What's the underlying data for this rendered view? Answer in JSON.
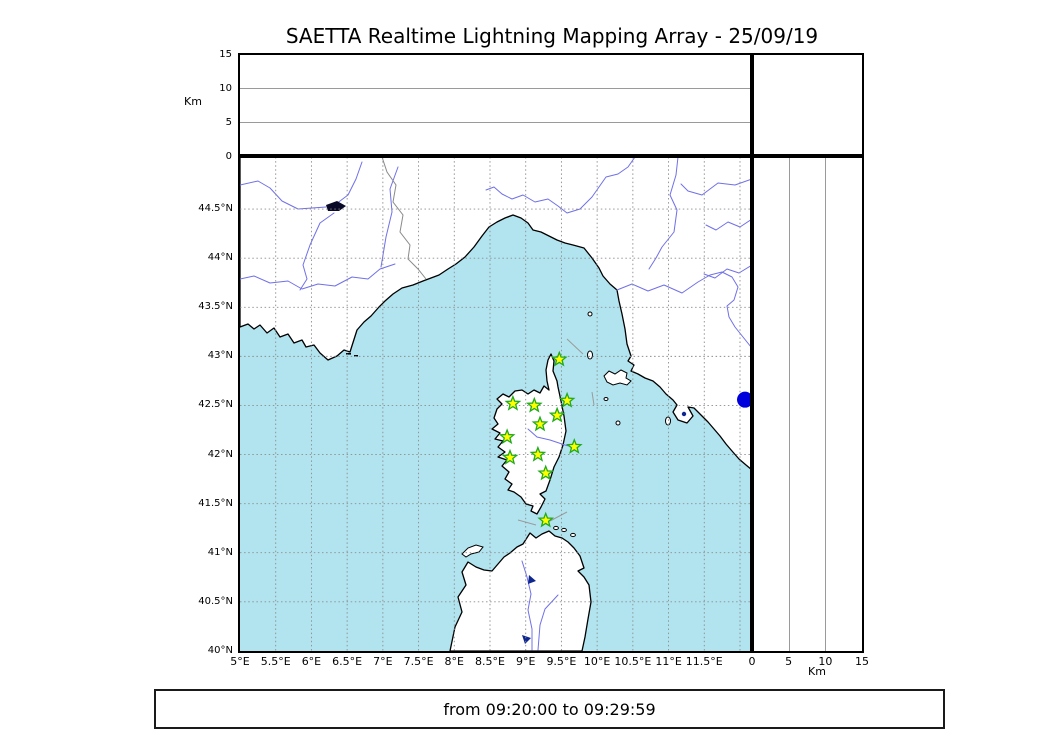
{
  "title": "SAETTA Realtime Lightning Mapping Array - 25/09/19",
  "time_range": "from 09:20:00 to 09:29:59",
  "altitude_panel": {
    "unit_label": "Km",
    "ticks_top_down": [
      "15",
      "10",
      "5",
      "0"
    ]
  },
  "distance_panel": {
    "unit_label": "Km",
    "ticks": [
      "0",
      "5",
      "10",
      "15"
    ]
  },
  "map_axes": {
    "lat_ticks": [
      "44.5°N",
      "44°N",
      "43.5°N",
      "43°N",
      "42.5°N",
      "42°N",
      "41.5°N",
      "41°N",
      "40.5°N",
      "40°N"
    ],
    "lon_ticks": [
      "5°E",
      "5.5°E",
      "6°E",
      "6.5°E",
      "7°E",
      "7.5°E",
      "8°E",
      "8.5°E",
      "9°E",
      "9.5°E",
      "10°E",
      "10.5°E",
      "11°E",
      "11.5°E"
    ]
  },
  "stations": [
    {
      "lon": 9.47,
      "lat": 42.97
    },
    {
      "lon": 8.82,
      "lat": 42.52
    },
    {
      "lon": 9.12,
      "lat": 42.5
    },
    {
      "lon": 9.58,
      "lat": 42.55
    },
    {
      "lon": 9.44,
      "lat": 42.4
    },
    {
      "lon": 9.2,
      "lat": 42.31
    },
    {
      "lon": 8.74,
      "lat": 42.18
    },
    {
      "lon": 9.68,
      "lat": 42.08
    },
    {
      "lon": 8.78,
      "lat": 41.97
    },
    {
      "lon": 9.17,
      "lat": 42.0
    },
    {
      "lon": 9.28,
      "lat": 41.81
    },
    {
      "lon": 9.28,
      "lat": 41.33
    }
  ],
  "event_marker": {
    "lon": 12.07,
    "lat": 42.56,
    "color": "#0000dd"
  },
  "colors": {
    "sea": "#b2e4f0",
    "land": "#ffffff",
    "coast": "#000000",
    "river": "#7070e8",
    "border": "#8a8a8a",
    "grid": "#8c8c8c",
    "station_fill": "#ffff00",
    "station_stroke": "#1faa1f",
    "lake": "#0d2690"
  }
}
